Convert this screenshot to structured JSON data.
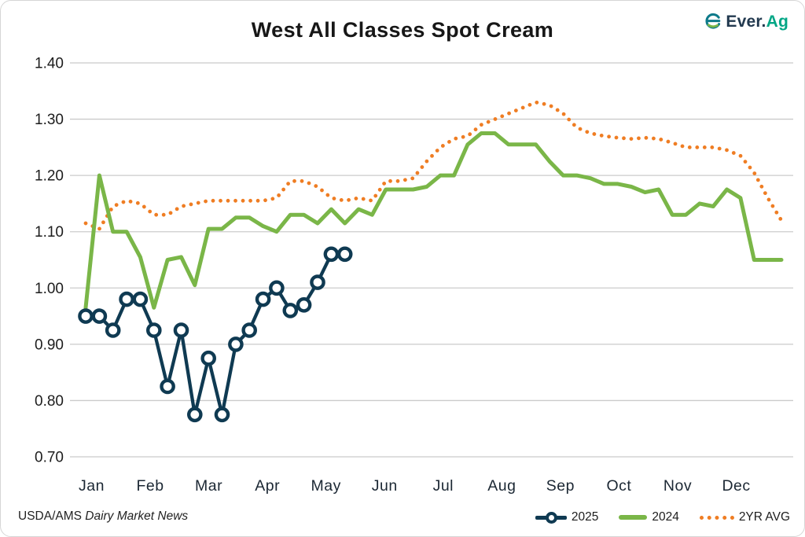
{
  "title": "West All Classes Spot Cream",
  "logo": {
    "brand_first": "Ever.",
    "brand_second": "Ag"
  },
  "footer": {
    "source_prefix": "USDA/AMS ",
    "source_name": "Dairy Market News"
  },
  "legend": {
    "position": "bottom-right",
    "items": [
      {
        "label": "2025",
        "color": "#0f3a52",
        "style": "line-with-circle-marker"
      },
      {
        "label": "2024",
        "color": "#7ab648",
        "style": "solid-line"
      },
      {
        "label": "2YR AVG",
        "color": "#ef7d23",
        "style": "dotted-line"
      }
    ]
  },
  "colors": {
    "navy_2025": "#0f3a52",
    "green_2024": "#7ab648",
    "orange_avg": "#ef7d23",
    "gridline": "#cbcbcb",
    "text": "#1c1c1c",
    "logo_teal": "#0d7a8a",
    "logo_green": "#7ab648"
  },
  "chart_data": {
    "type": "line",
    "title": "West All Classes Spot Cream",
    "xlabel": "",
    "ylabel": "",
    "x_unit": "week",
    "weeks_per_year": 52,
    "months": [
      "Jan",
      "Feb",
      "Mar",
      "Apr",
      "May",
      "Jun",
      "Jul",
      "Aug",
      "Sep",
      "Oct",
      "Nov",
      "Dec"
    ],
    "ylim": [
      0.7,
      1.4
    ],
    "y_ticks": [
      "1.40",
      "1.30",
      "1.20",
      "1.10",
      "1.00",
      "0.90",
      "0.80",
      "0.70"
    ],
    "y_tick_values": [
      1.4,
      1.3,
      1.2,
      1.1,
      1.0,
      0.9,
      0.8,
      0.7
    ],
    "grid": "horizontal-only",
    "legend_position": "bottom-right",
    "series": [
      {
        "name": "2025",
        "color": "#0f3a52",
        "style": "solid",
        "marker": "open-circle",
        "values": [
          0.95,
          0.95,
          0.925,
          0.98,
          0.98,
          0.925,
          0.825,
          0.925,
          0.775,
          0.875,
          0.775,
          0.9,
          0.925,
          0.98,
          1.0,
          0.96,
          0.97,
          1.01,
          1.06,
          1.06
        ]
      },
      {
        "name": "2024",
        "color": "#7ab648",
        "style": "solid",
        "marker": "none",
        "values": [
          0.965,
          1.2,
          1.1,
          1.1,
          1.055,
          0.965,
          1.05,
          1.055,
          1.005,
          1.105,
          1.105,
          1.125,
          1.125,
          1.11,
          1.1,
          1.13,
          1.13,
          1.115,
          1.14,
          1.115,
          1.14,
          1.13,
          1.175,
          1.175,
          1.175,
          1.18,
          1.2,
          1.2,
          1.255,
          1.275,
          1.275,
          1.255,
          1.255,
          1.255,
          1.225,
          1.2,
          1.2,
          1.195,
          1.185,
          1.185,
          1.18,
          1.17,
          1.175,
          1.13,
          1.13,
          1.15,
          1.145,
          1.175,
          1.16,
          1.05,
          1.05,
          1.05
        ]
      },
      {
        "name": "2YR AVG",
        "color": "#ef7d23",
        "style": "dotted",
        "marker": "none",
        "values": [
          1.115,
          1.105,
          1.145,
          1.155,
          1.15,
          1.13,
          1.13,
          1.145,
          1.15,
          1.155,
          1.155,
          1.155,
          1.155,
          1.155,
          1.16,
          1.19,
          1.19,
          1.18,
          1.16,
          1.155,
          1.16,
          1.155,
          1.19,
          1.19,
          1.195,
          1.225,
          1.25,
          1.265,
          1.27,
          1.29,
          1.3,
          1.31,
          1.32,
          1.33,
          1.325,
          1.31,
          1.285,
          1.275,
          1.27,
          1.267,
          1.265,
          1.267,
          1.265,
          1.258,
          1.25,
          1.25,
          1.25,
          1.245,
          1.235,
          1.205,
          1.16,
          1.12
        ]
      }
    ]
  }
}
